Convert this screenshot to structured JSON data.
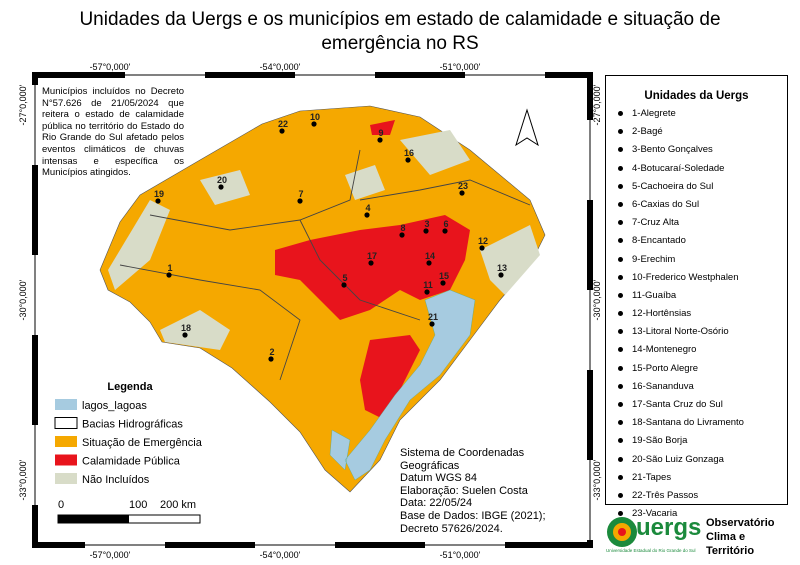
{
  "title": "Unidades da Uergs e os municípios em estado de calamidade e situação de emergência no RS",
  "top_coords": [
    "-57°0,000'",
    "-54°0,000'",
    "-51°0,000'"
  ],
  "bottom_coords": [
    "-57°0,000'",
    "-54°0,000'",
    "-51°0,000'"
  ],
  "left_coords": [
    "-27°0,000'",
    "-30°0,000'",
    "-33°0,000'"
  ],
  "right_coords": [
    "-27°0,000'",
    "-30°0,000'",
    "-33°0,000'"
  ],
  "note": "Municípios incluídos no Decreto N°57.626 de 21/05/2024 que reitera o estado de calamidade pública no território do Estado do Rio Grande do Sul afetado pelos eventos climáticos de chuvas intensas e específica os Municípios atingidos.",
  "legend": {
    "title": "Legenda",
    "items": [
      "lagos_lagoas",
      "Bacias Hidrográficas",
      "Situação de Emergência",
      "Calamidade Pública",
      "Não Incluídos"
    ]
  },
  "scale": [
    "0",
    "100",
    "200 km"
  ],
  "info": [
    "Sistema de Coordenadas",
    "Geográficas",
    "Datum WGS 84",
    "Elaboração: Suelen Costa",
    "Data: 22/05/24",
    "Base de Dados: IBGE (2021);",
    "Decreto 57626/2024."
  ],
  "map_points": [
    "1",
    "2",
    "3",
    "4",
    "5",
    "6",
    "7",
    "8",
    "9",
    "10",
    "11",
    "12",
    "13",
    "14",
    "15",
    "16",
    "17",
    "18",
    "19",
    "20",
    "21",
    "22",
    "23"
  ],
  "units": {
    "title": "Unidades da Uergs",
    "items": [
      "1-Alegrete",
      "2-Bagé",
      "3-Bento Gonçalves",
      "4-Botucaraí-Soledade",
      "5-Cachoeira do Sul",
      "6-Caxias do Sul",
      "7-Cruz Alta",
      "8-Encantado",
      "9-Erechim",
      "10-Frederico Westphalen",
      "11-Guaíba",
      "12-Hortênsias",
      "13-Litoral Norte-Osório",
      "14-Montenegro",
      "15-Porto Alegre",
      "16-Sananduva",
      "17-Santa Cruz do Sul",
      "18-Santana do Livramento",
      "19-São Borja",
      "20-São Luiz Gonzaga",
      "21-Tapes",
      "22-Três Passos",
      "23-Vacaria"
    ]
  },
  "logo": {
    "brand": "uergs",
    "subtitle": "Universidade Estadual do Rio Grande do Sul",
    "lines": [
      "Observatório",
      "Clima e",
      "Território"
    ]
  }
}
